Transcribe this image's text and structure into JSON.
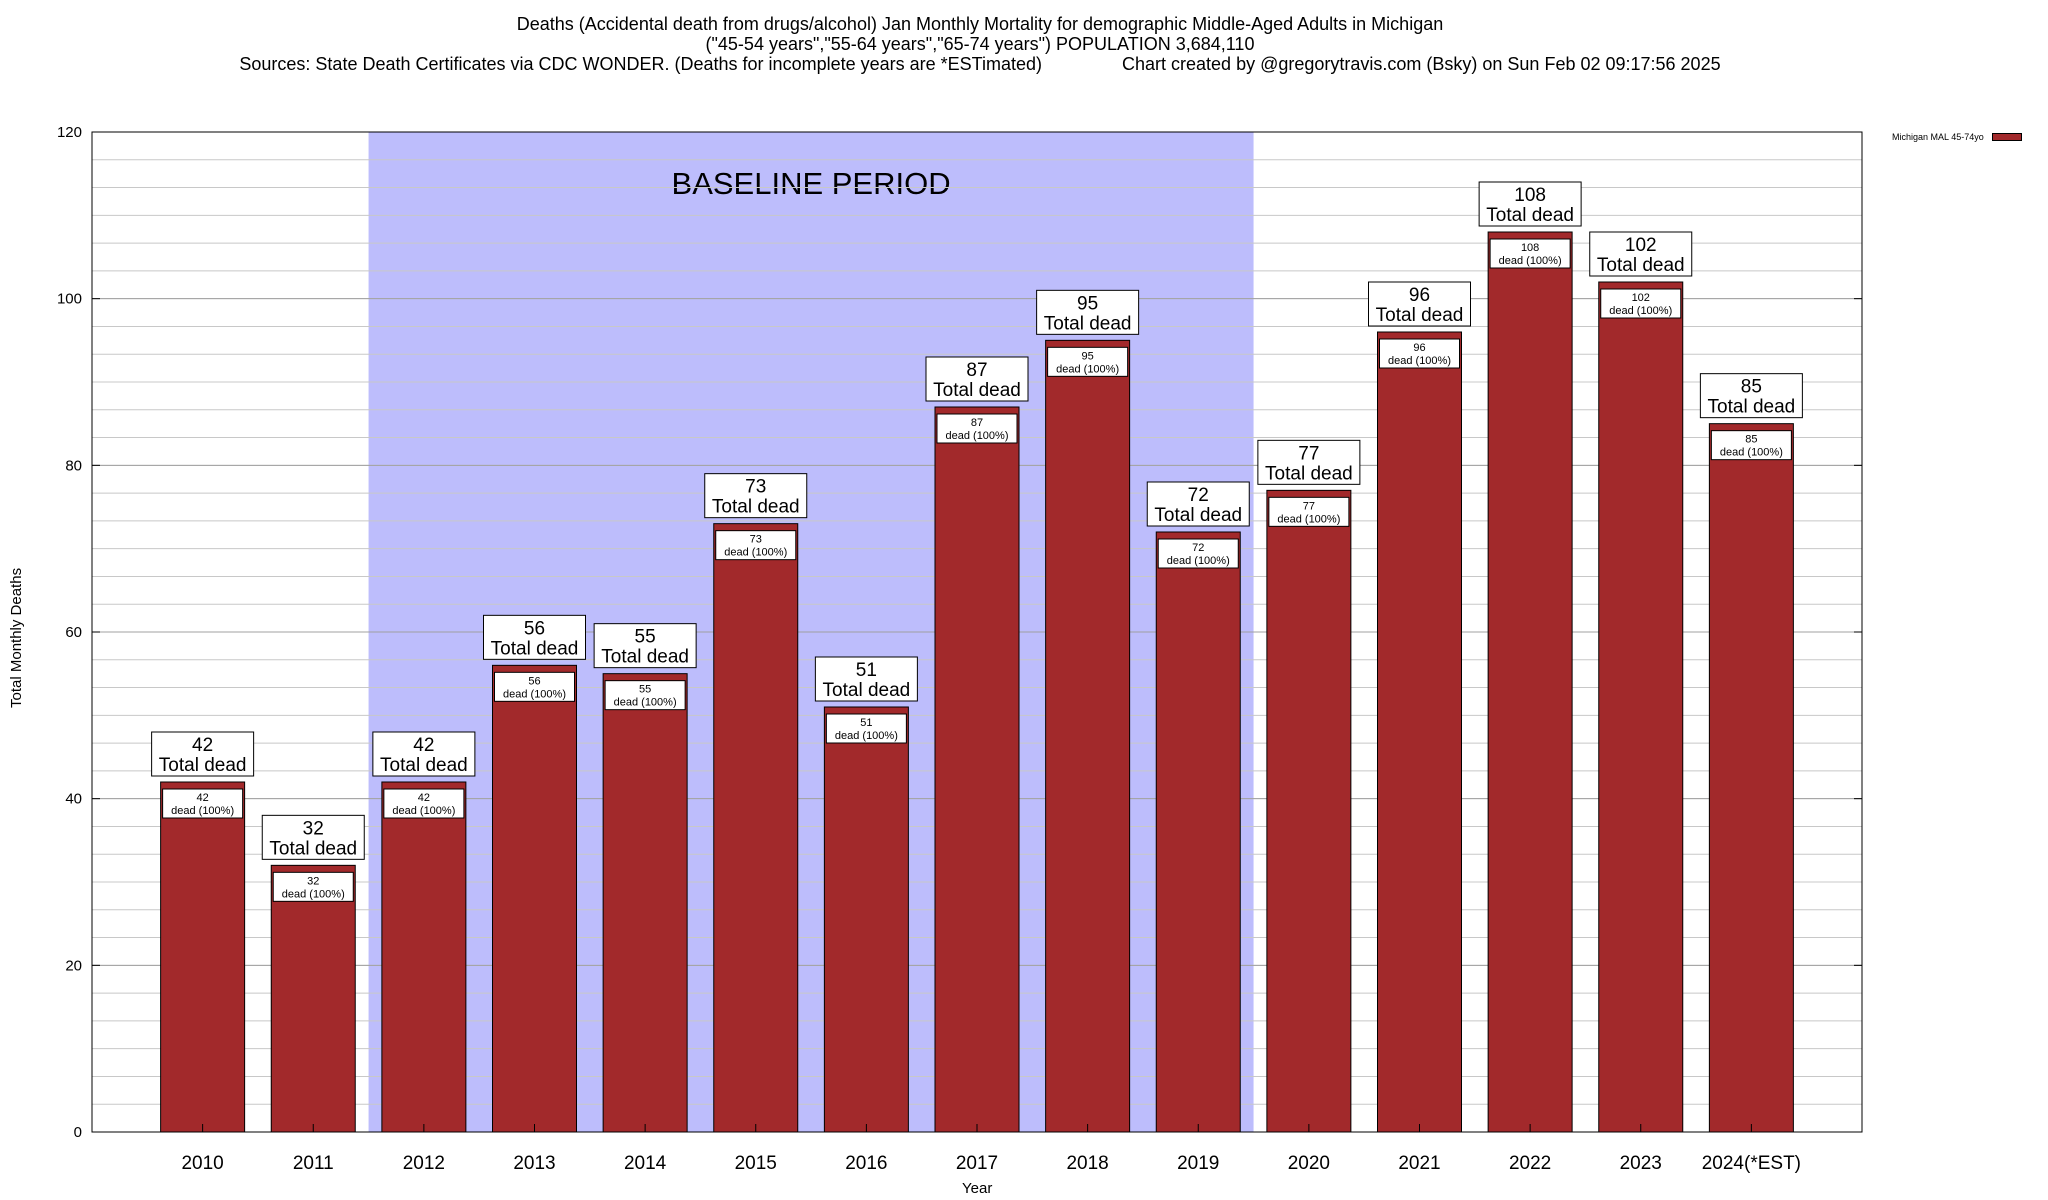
{
  "header": {
    "title": "Deaths (Accidental death from drugs/alcohol) Jan Monthly Mortality for demographic Middle-Aged Adults in Michigan",
    "subtitle": "(\"45-54 years\",\"55-64 years\",\"65-74 years\") POPULATION 3,684,110",
    "source": "Sources: State Death Certificates via CDC WONDER. (Deaths for incomplete years are *ESTimated)                Chart created by @gregorytravis.com (Bsky) on Sun Feb 02 09:17:56 2025"
  },
  "chart_data": {
    "type": "bar",
    "categories": [
      "2010",
      "2011",
      "2012",
      "2013",
      "2014",
      "2015",
      "2016",
      "2017",
      "2018",
      "2019",
      "2020",
      "2021",
      "2022",
      "2023",
      "2024(*EST)"
    ],
    "series": [
      {
        "name": "Michigan MAL 45-74yo",
        "values": [
          42,
          32,
          42,
          56,
          55,
          73,
          51,
          87,
          95,
          72,
          77,
          96,
          108,
          102,
          85
        ]
      }
    ],
    "xlabel": "Year",
    "ylabel": "Total Monthly Deaths",
    "ylim": [
      0,
      120
    ],
    "yticks": [
      0,
      20,
      40,
      60,
      80,
      100,
      120
    ],
    "grid": true,
    "legend_position": "top-right",
    "bar_color": "#a2292b",
    "baseline_period": {
      "label": "BASELINE PERIOD",
      "start": "2012",
      "end": "2019",
      "color": "#bdbdfc"
    },
    "top_label_suffix": "Total dead",
    "inner_label_suffix": "dead (100%)"
  }
}
